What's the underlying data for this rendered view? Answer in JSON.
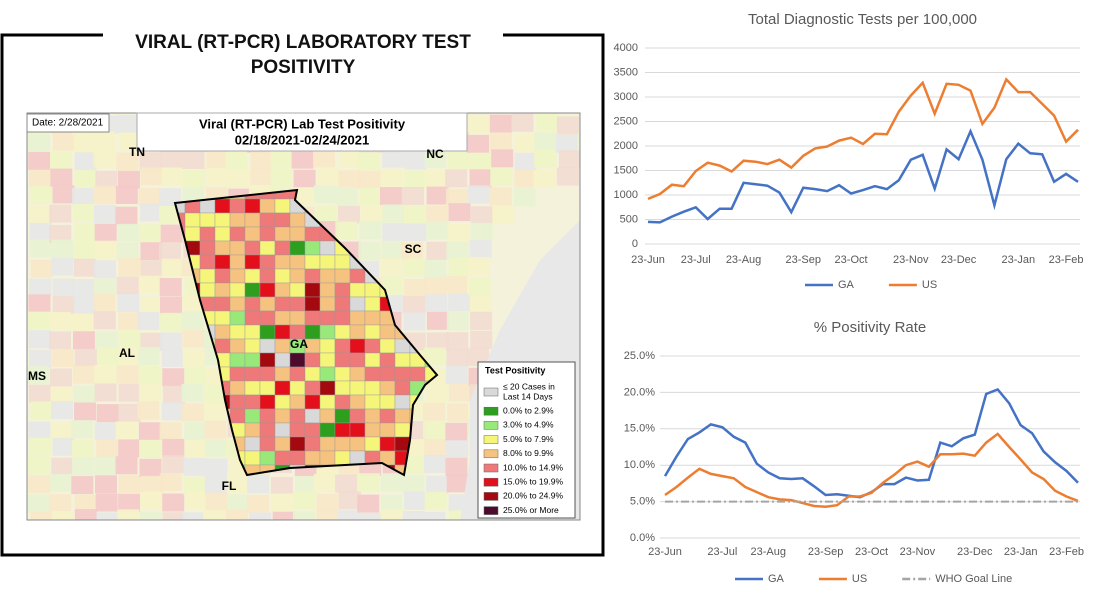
{
  "map_panel": {
    "title": "VIRAL (RT-PCR) LABORATORY TEST POSITIVITY",
    "date": "Date: 2/28/2021",
    "map_title": "Viral (RT-PCR) Lab Test Positivity",
    "date_range": "02/18/2021-02/24/2021",
    "state_labels": [
      "TN",
      "NC",
      "SC",
      "GA",
      "AL",
      "MS",
      "FL"
    ],
    "legend": {
      "title": "Test Positivity",
      "items": [
        {
          "label": [
            "≤ 20 Cases in",
            "Last 14 Days"
          ],
          "color": "#d9d9d9"
        },
        {
          "label": [
            "0.0% to 2.9%"
          ],
          "color": "#2e9e1f"
        },
        {
          "label": [
            "3.0% to 4.9%"
          ],
          "color": "#99e87a"
        },
        {
          "label": [
            "5.0% to 7.9%"
          ],
          "color": "#f5f57a"
        },
        {
          "label": [
            "8.0% to 9.9%"
          ],
          "color": "#f5c27f"
        },
        {
          "label": [
            "10.0% to 14.9%"
          ],
          "color": "#ef7878"
        },
        {
          "label": [
            "15.0% to 19.9%"
          ],
          "color": "#e3101c"
        },
        {
          "label": [
            "20.0% to 24.9%"
          ],
          "color": "#a3090f"
        },
        {
          "label": [
            "25.0% or More"
          ],
          "color": "#4d0a2c"
        }
      ]
    }
  },
  "chart_data": [
    {
      "type": "line",
      "title": "Total Diagnostic Tests per 100,000",
      "categories": [
        "23-Jun",
        null,
        null,
        null,
        "23-Jul",
        null,
        null,
        null,
        "23-Aug",
        null,
        null,
        null,
        null,
        "23-Sep",
        null,
        null,
        null,
        "23-Oct",
        null,
        null,
        null,
        null,
        "23-Nov",
        null,
        null,
        null,
        "23-Dec",
        null,
        null,
        null,
        null,
        "23-Jan",
        null,
        null,
        null,
        "23-Feb",
        null
      ],
      "series": [
        {
          "name": "GA",
          "color": "#4472c4",
          "values": [
            450,
            440,
            560,
            660,
            750,
            510,
            720,
            720,
            1250,
            1220,
            1190,
            1050,
            650,
            1150,
            1120,
            1080,
            1200,
            1030,
            1100,
            1180,
            1120,
            1300,
            1720,
            1820,
            1130,
            1930,
            1730,
            2300,
            1720,
            790,
            1730,
            2050,
            1850,
            1830,
            1270,
            1430,
            1270
          ]
        },
        {
          "name": "US",
          "color": "#ed7d31",
          "values": [
            920,
            1020,
            1210,
            1180,
            1490,
            1660,
            1600,
            1480,
            1700,
            1680,
            1630,
            1720,
            1560,
            1800,
            1950,
            1990,
            2110,
            2170,
            2040,
            2250,
            2240,
            2700,
            3030,
            3290,
            2660,
            3270,
            3250,
            3130,
            2450,
            2780,
            3360,
            3100,
            3100,
            2860,
            2620,
            2090,
            2330
          ]
        }
      ],
      "ylim": [
        0,
        4000
      ],
      "yticks": [
        0,
        500,
        1000,
        1500,
        2000,
        2500,
        3000,
        3500,
        4000
      ],
      "grid": true,
      "legend": "bottom"
    },
    {
      "type": "line",
      "title": "% Positivity Rate",
      "categories": [
        "23-Jun",
        null,
        null,
        null,
        null,
        "23-Jul",
        null,
        null,
        null,
        "23-Aug",
        null,
        null,
        null,
        null,
        "23-Sep",
        null,
        null,
        null,
        "23-Oct",
        null,
        null,
        null,
        "23-Nov",
        null,
        null,
        null,
        null,
        "23-Dec",
        null,
        null,
        null,
        "23-Jan",
        null,
        null,
        null,
        "23-Feb",
        null
      ],
      "series": [
        {
          "name": "GA",
          "color": "#4472c4",
          "values": [
            8.5,
            11.2,
            13.6,
            14.5,
            15.6,
            15.2,
            13.9,
            13.1,
            10.2,
            9.0,
            8.2,
            8.1,
            8.2,
            7.1,
            5.9,
            6.0,
            5.8,
            5.6,
            6.3,
            7.4,
            7.4,
            8.3,
            7.9,
            8.0,
            13.1,
            12.6,
            13.7,
            14.2,
            19.8,
            20.4,
            18.5,
            15.5,
            14.4,
            11.9,
            10.4,
            9.2,
            7.6
          ]
        },
        {
          "name": "US",
          "color": "#ed7d31",
          "values": [
            5.9,
            7.0,
            8.3,
            9.5,
            8.8,
            8.5,
            8.2,
            7.0,
            6.3,
            5.6,
            5.3,
            5.2,
            4.8,
            4.4,
            4.3,
            4.5,
            5.7,
            5.7,
            6.2,
            7.6,
            8.7,
            10.0,
            10.5,
            9.8,
            11.5,
            11.5,
            11.6,
            11.3,
            13.1,
            14.3,
            12.5,
            10.8,
            9.0,
            8.1,
            6.5,
            5.7,
            5.1
          ]
        },
        {
          "name": "WHO Goal Line",
          "color": "#a5a5a5",
          "dashed": true,
          "values": [
            5,
            5,
            5,
            5,
            5,
            5,
            5,
            5,
            5,
            5,
            5,
            5,
            5,
            5,
            5,
            5,
            5,
            5,
            5,
            5,
            5,
            5,
            5,
            5,
            5,
            5,
            5,
            5,
            5,
            5,
            5,
            5,
            5,
            5,
            5,
            5,
            5
          ]
        }
      ],
      "ylim": [
        0,
        25
      ],
      "yticks": [
        {
          "value": 0,
          "label": "0.0%"
        },
        {
          "value": 5,
          "label": "5.0%"
        },
        {
          "value": 10,
          "label": "10.0%"
        },
        {
          "value": 15,
          "label": "15.0%"
        },
        {
          "value": 20,
          "label": "20.0%"
        },
        {
          "value": 25,
          "label": "25.0%"
        }
      ],
      "grid": true,
      "legend": "bottom"
    }
  ]
}
